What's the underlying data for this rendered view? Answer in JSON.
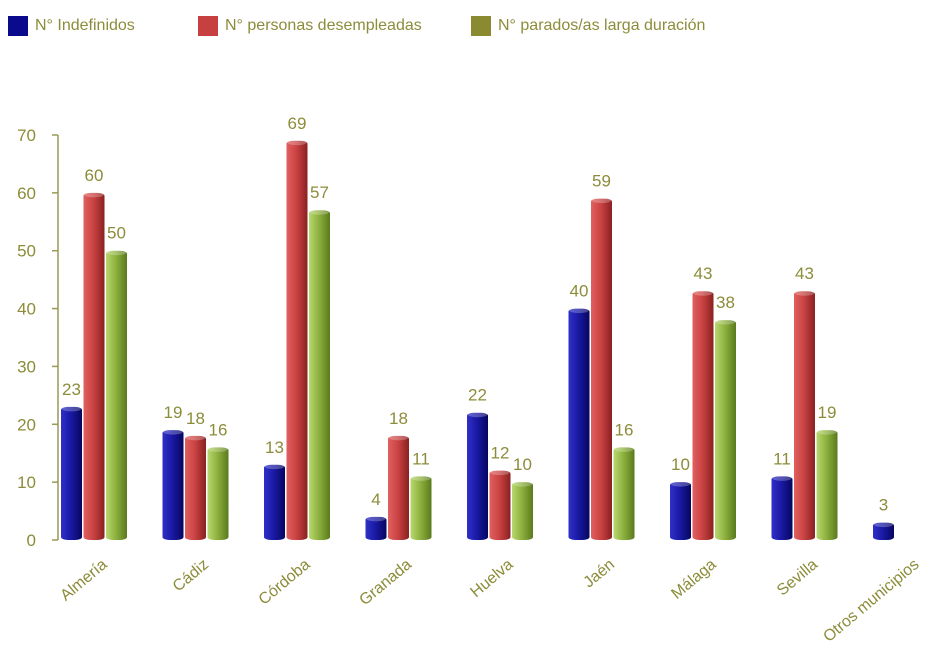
{
  "chart_data": {
    "type": "bar",
    "categories": [
      "Almería",
      "Cádiz",
      "Córdoba",
      "Granada",
      "Huelva",
      "Jaén",
      "Málaga",
      "Sevilla",
      "Otros municipios"
    ],
    "series": [
      {
        "name": "N° Indefinidos",
        "color": "#1a1aa6",
        "values": [
          23,
          19,
          13,
          4,
          22,
          40,
          10,
          11,
          3
        ]
      },
      {
        "name": "N° personas desempleadas",
        "color": "#cc4444",
        "values": [
          60,
          18,
          69,
          18,
          12,
          59,
          43,
          43,
          null
        ]
      },
      {
        "name": "N° parados/as larga duración",
        "color": "#8fb340",
        "values": [
          50,
          16,
          57,
          11,
          10,
          16,
          38,
          19,
          null
        ]
      }
    ],
    "yticks": [
      0,
      10,
      20,
      30,
      40,
      50,
      60,
      70
    ],
    "ylim": [
      0,
      70
    ],
    "legend_position": "top-left",
    "grid": false
  },
  "colors": {
    "text": "#8c8c3a",
    "axis": "#9a9a55",
    "swatch_1": "#0a0a8c",
    "swatch_2": "#c64040",
    "swatch_3": "#8a8a30"
  }
}
